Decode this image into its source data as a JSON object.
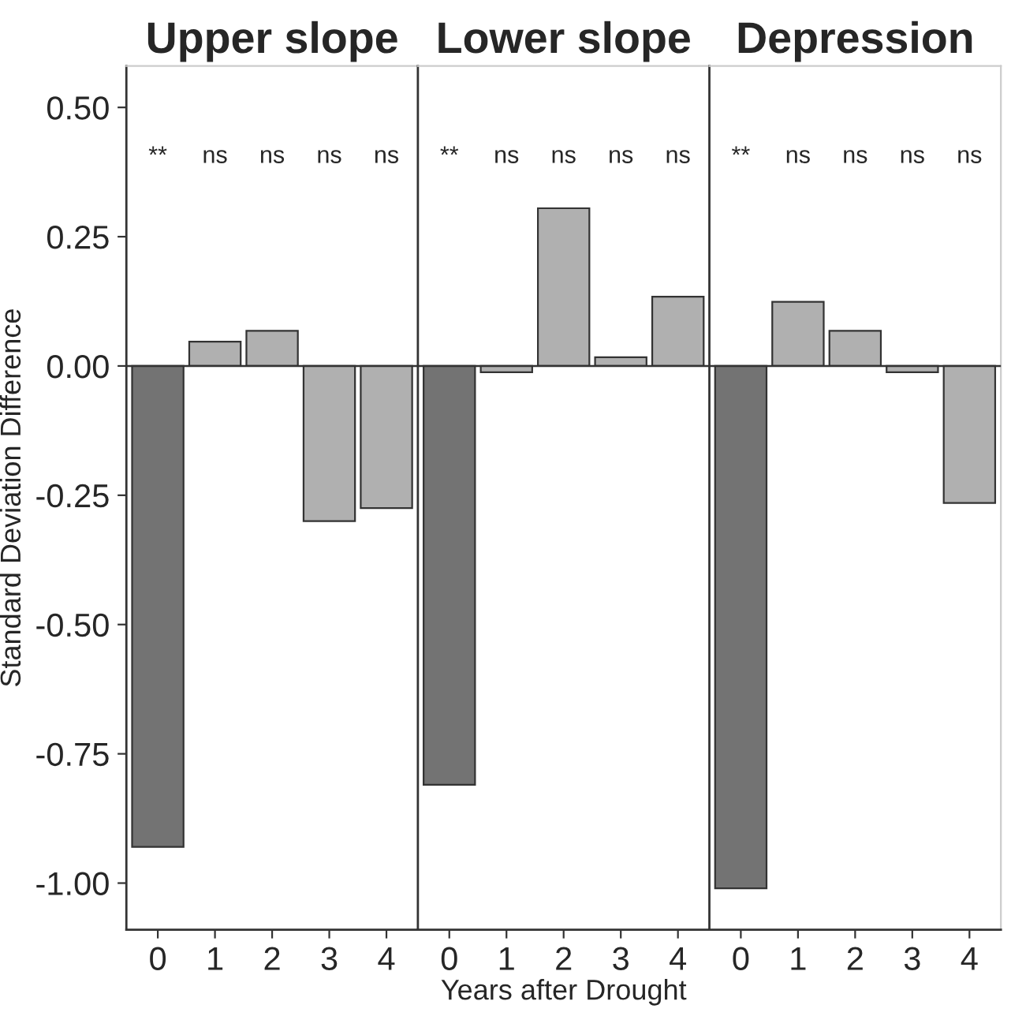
{
  "chart_data": [
    {
      "type": "bar",
      "title": "Upper slope",
      "ylabel": "Standard Deviation Difference",
      "categories": [
        "0",
        "1",
        "2",
        "3",
        "4"
      ],
      "values": [
        -0.93,
        0.047,
        0.068,
        -0.3,
        -0.275
      ],
      "colors": [
        "#737373",
        "#b0b0b0",
        "#b0b0b0",
        "#b0b0b0",
        "#b0b0b0"
      ],
      "ylim": [
        -1.09,
        0.58
      ],
      "yticks": [
        {
          "value": -1,
          "label": "-1.00"
        },
        {
          "value": -0.75,
          "label": "-0.75"
        },
        {
          "value": -0.5,
          "label": "-0.50"
        },
        {
          "value": -0.25,
          "label": "-0.25"
        },
        {
          "value": 0,
          "label": "0.00"
        },
        {
          "value": 0.25,
          "label": "0.25"
        },
        {
          "value": 0.5,
          "label": "0.50"
        }
      ],
      "ref_lines": [
        {
          "axis": "y",
          "value": 0,
          "color": "#333333"
        }
      ],
      "annotations": [
        "**",
        "ns",
        "ns",
        "ns",
        "ns"
      ],
      "grid": false
    },
    {
      "type": "bar",
      "title": "Lower slope",
      "xlabel": "Years after Drought",
      "categories": [
        "0",
        "1",
        "2",
        "3",
        "4"
      ],
      "values": [
        -0.81,
        -0.012,
        0.305,
        0.017,
        0.134
      ],
      "colors": [
        "#737373",
        "#b0b0b0",
        "#b0b0b0",
        "#b0b0b0",
        "#b0b0b0"
      ],
      "ylim": [
        -1.09,
        0.58
      ],
      "tick_labels": "x",
      "ref_lines": [
        {
          "axis": "y",
          "value": 0,
          "color": "#333333"
        }
      ],
      "annotations": [
        "**",
        "ns",
        "ns",
        "ns",
        "ns"
      ],
      "grid": false
    },
    {
      "type": "bar",
      "title": "Depression",
      "categories": [
        "0",
        "1",
        "2",
        "3",
        "4"
      ],
      "values": [
        -1.01,
        0.124,
        0.068,
        -0.012,
        -0.265
      ],
      "colors": [
        "#737373",
        "#b0b0b0",
        "#b0b0b0",
        "#b0b0b0",
        "#b0b0b0"
      ],
      "ylim": [
        -1.09,
        0.58
      ],
      "tick_labels": "x",
      "ref_lines": [
        {
          "axis": "y",
          "value": 0,
          "color": "#333333"
        }
      ],
      "annotations": [
        "**",
        "ns",
        "ns",
        "ns",
        "ns"
      ],
      "grid": false
    }
  ]
}
